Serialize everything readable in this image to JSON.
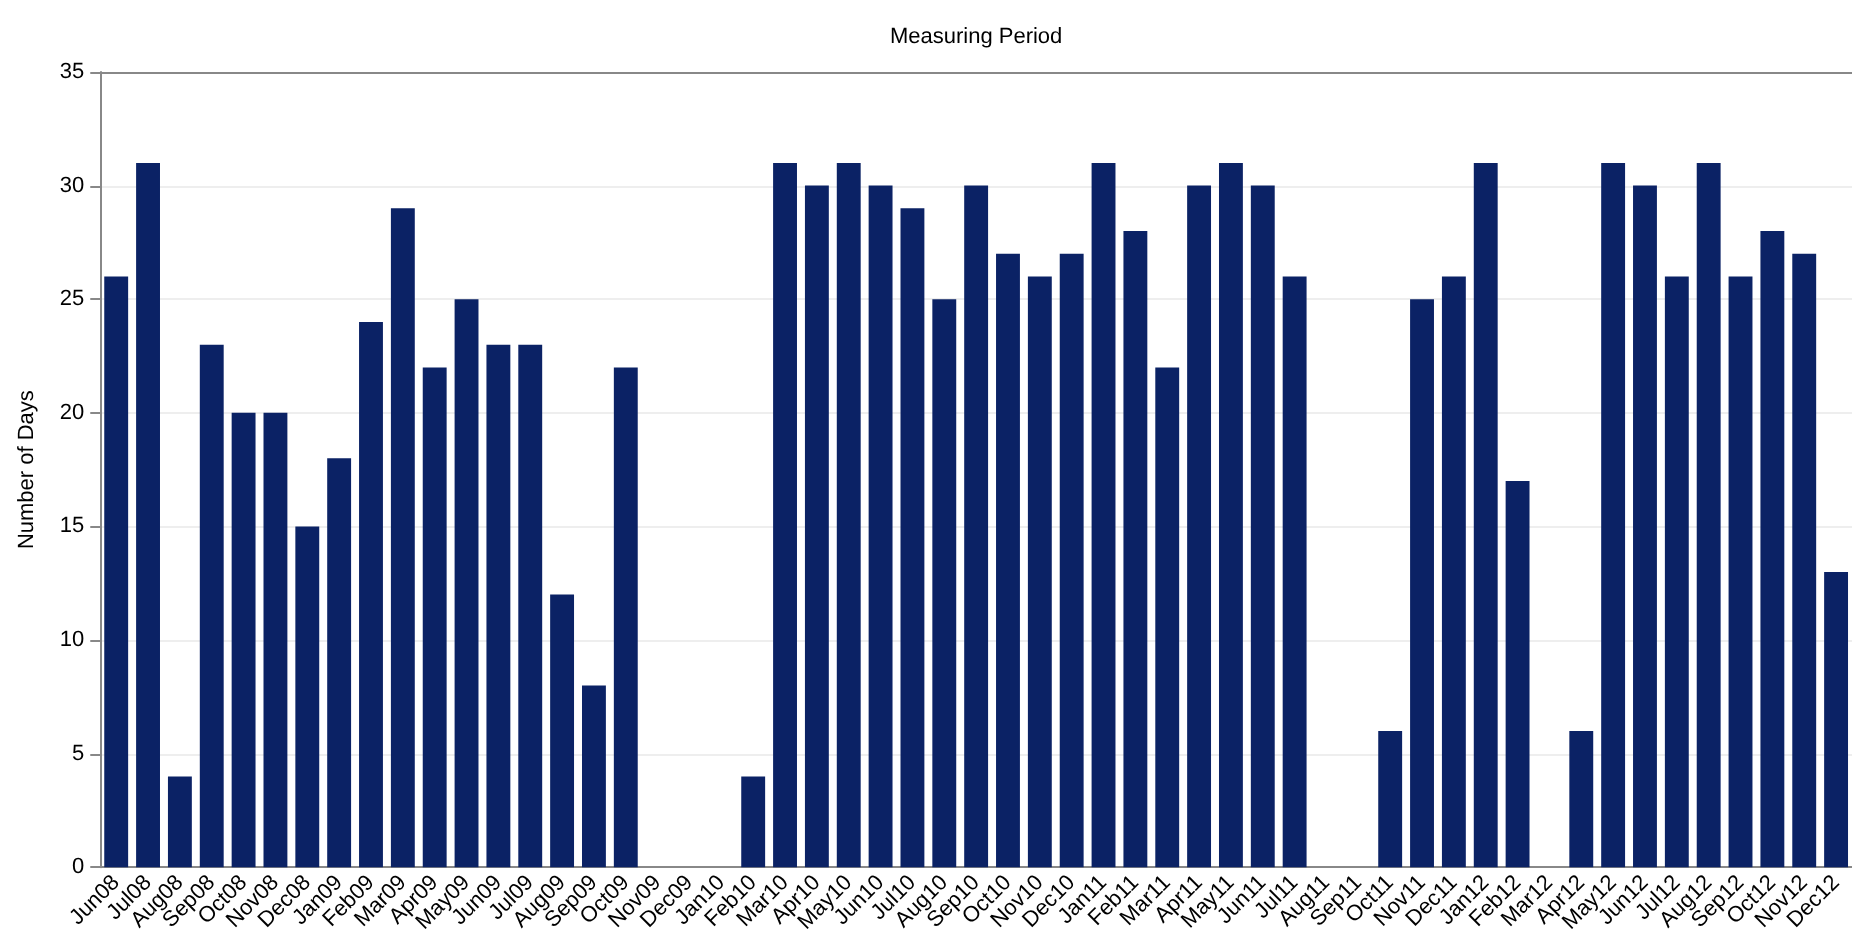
{
  "chart_data": {
    "type": "bar",
    "xlabel": "Measuring Period",
    "ylabel": "Number of Days",
    "categories": [
      "Jun08",
      "Jul08",
      "Aug08",
      "Sep08",
      "Oct08",
      "Nov08",
      "Dec08",
      "Jan09",
      "Feb09",
      "Mar09",
      "Apr09",
      "May09",
      "Jun09",
      "Jul09",
      "Aug09",
      "Sep09",
      "Oct09",
      "Nov09",
      "Dec09",
      "Jan10",
      "Feb10",
      "Mar10",
      "Apr10",
      "May10",
      "Jun10",
      "Jul10",
      "Aug10",
      "Sep10",
      "Oct10",
      "Nov10",
      "Dec10",
      "Jan11",
      "Feb11",
      "Mar11",
      "Apr11",
      "May11",
      "Jun11",
      "Jul11",
      "Aug11",
      "Sep11",
      "Oct11",
      "Nov11",
      "Dec11",
      "Jan12",
      "Feb12",
      "Mar12",
      "Apr12",
      "May12",
      "Jun12",
      "Jul12",
      "Aug12",
      "Sep12",
      "Oct12",
      "Nov12",
      "Dec12"
    ],
    "values": [
      26,
      31,
      4,
      23,
      20,
      20,
      15,
      18,
      24,
      29,
      22,
      25,
      23,
      23,
      12,
      8,
      22,
      null,
      null,
      null,
      4,
      31,
      30,
      31,
      30,
      29,
      25,
      30,
      27,
      26,
      27,
      31,
      28,
      22,
      30,
      31,
      30,
      26,
      null,
      null,
      6,
      25,
      26,
      31,
      17,
      null,
      6,
      31,
      30,
      26,
      31,
      26,
      28,
      27,
      13
    ],
    "color": "#0b2265",
    "ylim": [
      0,
      35
    ],
    "yticks": [
      0,
      5,
      10,
      15,
      20,
      25,
      30,
      35
    ],
    "grid": "y"
  }
}
